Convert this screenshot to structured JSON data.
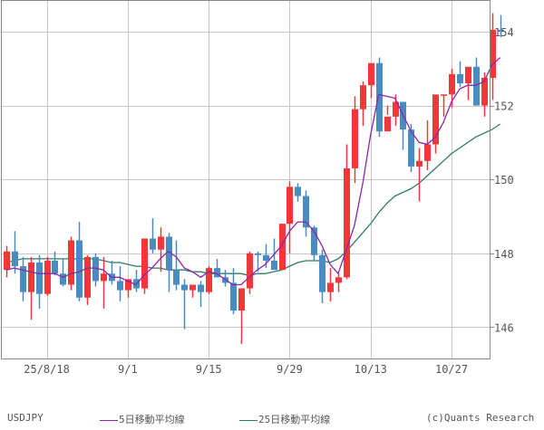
{
  "chart_data": {
    "type": "candlestick",
    "title": "",
    "symbol": "USDJPY",
    "xlabel": "",
    "ylabel": "",
    "ylim": [
      145.2,
      154.8
    ],
    "yticks": [
      146,
      148,
      150,
      152,
      154
    ],
    "xticks": [
      {
        "label": "25/8/18",
        "index": 5
      },
      {
        "label": "9/1",
        "index": 15
      },
      {
        "label": "9/15",
        "index": 25
      },
      {
        "label": "9/29",
        "index": 35
      },
      {
        "label": "10/13",
        "index": 45
      },
      {
        "label": "10/27",
        "index": 55
      }
    ],
    "grid": true,
    "up_color": "#f2363a",
    "down_color": "#4a8bc2",
    "ohlc": [
      [
        147.55,
        148.2,
        147.35,
        148.05
      ],
      [
        148.05,
        148.6,
        147.45,
        147.65
      ],
      [
        147.65,
        147.9,
        146.7,
        146.95
      ],
      [
        146.95,
        147.9,
        146.2,
        147.75
      ],
      [
        147.75,
        147.95,
        146.5,
        146.9
      ],
      [
        146.9,
        147.9,
        146.85,
        147.8
      ],
      [
        147.8,
        148.05,
        147.4,
        147.45
      ],
      [
        147.45,
        147.85,
        147.1,
        147.15
      ],
      [
        147.15,
        148.45,
        147.0,
        148.35
      ],
      [
        148.35,
        148.85,
        146.7,
        146.8
      ],
      [
        146.8,
        147.95,
        146.6,
        147.9
      ],
      [
        147.9,
        148.0,
        147.1,
        147.25
      ],
      [
        147.25,
        147.9,
        146.5,
        147.45
      ],
      [
        147.45,
        147.8,
        147.15,
        147.25
      ],
      [
        147.25,
        147.65,
        146.7,
        147.0
      ],
      [
        147.0,
        147.3,
        146.8,
        147.3
      ],
      [
        147.3,
        147.55,
        146.95,
        147.05
      ],
      [
        147.05,
        148.35,
        146.9,
        148.4
      ],
      [
        148.4,
        148.95,
        148.0,
        148.1
      ],
      [
        148.1,
        148.7,
        147.5,
        148.45
      ],
      [
        148.45,
        148.55,
        146.95,
        147.55
      ],
      [
        147.55,
        148.35,
        147.0,
        147.15
      ],
      [
        147.15,
        147.3,
        145.95,
        147.0
      ],
      [
        147.0,
        147.15,
        146.8,
        147.15
      ],
      [
        147.15,
        147.25,
        146.55,
        146.95
      ],
      [
        146.95,
        147.65,
        146.9,
        147.6
      ],
      [
        147.6,
        147.85,
        147.4,
        147.35
      ],
      [
        147.35,
        147.55,
        147.1,
        147.2
      ],
      [
        147.2,
        147.6,
        146.35,
        146.45
      ],
      [
        146.45,
        146.9,
        145.55,
        147.05
      ],
      [
        147.05,
        148.05,
        146.9,
        148.0
      ],
      [
        148.0,
        148.05,
        147.5,
        147.95
      ],
      [
        147.95,
        148.25,
        147.6,
        147.8
      ],
      [
        147.8,
        148.4,
        147.65,
        147.55
      ],
      [
        147.55,
        148.8,
        147.55,
        148.8
      ],
      [
        148.8,
        149.95,
        148.0,
        149.8
      ],
      [
        149.8,
        149.9,
        149.4,
        149.55
      ],
      [
        149.55,
        149.7,
        148.45,
        148.7
      ],
      [
        148.7,
        148.75,
        147.8,
        147.95
      ],
      [
        147.95,
        148.1,
        146.65,
        146.95
      ],
      [
        146.95,
        147.6,
        146.7,
        147.2
      ],
      [
        147.2,
        147.45,
        146.95,
        147.35
      ],
      [
        147.35,
        150.95,
        147.3,
        150.3
      ],
      [
        150.3,
        152.25,
        149.9,
        151.9
      ],
      [
        151.9,
        152.65,
        151.45,
        152.55
      ],
      [
        152.55,
        153.1,
        152.2,
        153.15
      ],
      [
        153.15,
        153.3,
        151.15,
        151.3
      ],
      [
        151.3,
        152.0,
        151.75,
        151.7
      ],
      [
        151.7,
        152.3,
        151.45,
        152.1
      ],
      [
        152.1,
        152.1,
        150.8,
        151.35
      ],
      [
        151.35,
        151.5,
        150.2,
        150.35
      ],
      [
        150.35,
        150.85,
        149.4,
        150.5
      ],
      [
        150.5,
        151.6,
        150.25,
        150.95
      ],
      [
        150.95,
        152.05,
        150.7,
        152.3
      ],
      [
        152.3,
        152.3,
        151.7,
        152.3
      ],
      [
        152.3,
        153.0,
        151.95,
        152.85
      ],
      [
        152.85,
        153.2,
        152.5,
        152.6
      ],
      [
        152.6,
        153.0,
        152.15,
        153.05
      ],
      [
        153.05,
        153.3,
        152.3,
        152.0
      ],
      [
        152.0,
        152.9,
        151.7,
        152.75
      ],
      [
        152.75,
        154.5,
        152.15,
        154.05
      ],
      [
        154.05,
        154.45,
        153.85,
        154.0
      ]
    ],
    "series": [
      {
        "name": "5日移動平均線",
        "color": "#8e24aa",
        "values": [
          147.55,
          147.6,
          147.55,
          147.5,
          147.45,
          147.45,
          147.45,
          147.35,
          147.45,
          147.5,
          147.6,
          147.6,
          147.55,
          147.35,
          147.35,
          147.25,
          147.15,
          147.4,
          147.6,
          147.85,
          148.05,
          147.9,
          147.6,
          147.5,
          147.35,
          147.5,
          147.45,
          147.3,
          147.15,
          147.15,
          147.35,
          147.55,
          147.7,
          147.95,
          148.2,
          148.6,
          148.85,
          148.85,
          148.6,
          148.2,
          147.7,
          147.45,
          148.1,
          148.75,
          149.85,
          151.2,
          152.3,
          152.25,
          152.2,
          151.75,
          151.3,
          151.0,
          150.95,
          151.15,
          151.55,
          152.1,
          152.45,
          152.55,
          152.55,
          152.65,
          153.1,
          153.3
        ]
      },
      {
        "name": "25日移動平均線",
        "color": "#2e7a6b",
        "values": [
          147.75,
          147.8,
          147.85,
          147.85,
          147.85,
          147.85,
          147.85,
          147.85,
          147.85,
          147.85,
          147.85,
          147.85,
          147.8,
          147.75,
          147.75,
          147.7,
          147.65,
          147.65,
          147.6,
          147.6,
          147.55,
          147.55,
          147.55,
          147.5,
          147.5,
          147.45,
          147.45,
          147.45,
          147.45,
          147.45,
          147.4,
          147.45,
          147.45,
          147.5,
          147.55,
          147.65,
          147.75,
          147.8,
          147.8,
          147.8,
          147.75,
          147.85,
          148.05,
          148.3,
          148.55,
          148.8,
          149.1,
          149.35,
          149.55,
          149.65,
          149.75,
          149.9,
          150.1,
          150.3,
          150.5,
          150.7,
          150.85,
          151.0,
          151.15,
          151.25,
          151.35,
          151.5
        ]
      }
    ]
  },
  "legend": {
    "symbol": "USDJPY",
    "ma5_label": "5日移動平均線",
    "ma25_label": "25日移動平均線",
    "copyright": "(c)Quants Research"
  }
}
